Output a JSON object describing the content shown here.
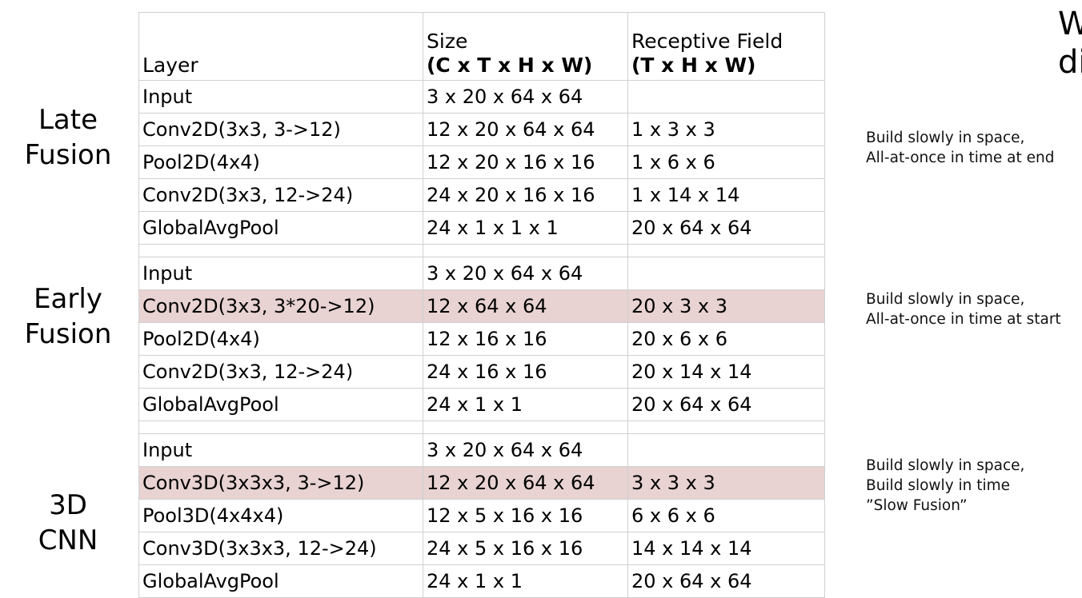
{
  "headers": {
    "layer": "Layer",
    "size_top": "Size",
    "size_bottom": "(C x T x H x W)",
    "rf_top": "Receptive Field",
    "rf_bottom": "(T x H x W)"
  },
  "groups": [
    {
      "label_lines": [
        "Late",
        "Fusion"
      ],
      "note_lines": [
        "Build slowly in space,",
        "All-at-once in time at end"
      ],
      "rows": [
        {
          "layer": "Input",
          "size": "3 x 20 x 64 x 64",
          "rf": "",
          "highlight": false
        },
        {
          "layer": "Conv2D(3x3, 3->12)",
          "size": "12 x 20 x 64 x 64",
          "rf": "1 x 3 x 3",
          "highlight": false
        },
        {
          "layer": "Pool2D(4x4)",
          "size": "12 x 20 x 16 x 16",
          "rf": "1 x 6 x 6",
          "highlight": false
        },
        {
          "layer": "Conv2D(3x3, 12->24)",
          "size": "24 x 20 x 16 x 16",
          "rf": "1 x 14 x 14",
          "highlight": false
        },
        {
          "layer": "GlobalAvgPool",
          "size": "24 x 1 x 1 x 1",
          "rf": "20 x 64 x 64",
          "highlight": false
        }
      ]
    },
    {
      "label_lines": [
        "Early",
        "Fusion"
      ],
      "note_lines": [
        "Build slowly in space,",
        "All-at-once in time at start"
      ],
      "rows": [
        {
          "layer": "Input",
          "size": "3 x 20 x 64 x 64",
          "rf": "",
          "highlight": false
        },
        {
          "layer": "Conv2D(3x3, 3*20->12)",
          "size": "12 x 64 x 64",
          "rf": "20 x 3 x 3",
          "highlight": true
        },
        {
          "layer": "Pool2D(4x4)",
          "size": "12 x 16 x 16",
          "rf": "20 x 6 x 6",
          "highlight": false
        },
        {
          "layer": "Conv2D(3x3, 12->24)",
          "size": "24 x 16 x 16",
          "rf": "20 x 14 x 14",
          "highlight": false
        },
        {
          "layer": "GlobalAvgPool",
          "size": "24 x 1 x 1",
          "rf": "20 x 64 x 64",
          "highlight": false
        }
      ]
    },
    {
      "label_lines": [
        "3D",
        "CNN"
      ],
      "note_lines": [
        "Build slowly in space,",
        "Build slowly in time",
        "”Slow Fusion”"
      ],
      "rows": [
        {
          "layer": "Input",
          "size": "3 x 20 x 64 x 64",
          "rf": "",
          "highlight": false
        },
        {
          "layer": "Conv3D(3x3x3, 3->12)",
          "size": "12 x 20 x 64 x 64",
          "rf": "3 x 3 x 3",
          "highlight": true
        },
        {
          "layer": "Pool3D(4x4x4)",
          "size": "12 x 5 x 16 x 16",
          "rf": "6 x 6 x 6",
          "highlight": false
        },
        {
          "layer": "Conv3D(3x3x3, 12->24)",
          "size": "24 x 5 x 16 x 16",
          "rf": "14 x 14 x 14",
          "highlight": false
        },
        {
          "layer": "GlobalAvgPool",
          "size": "24 x 1 x 1",
          "rf": "20 x 64 x 64",
          "highlight": false
        }
      ]
    }
  ],
  "corner_title_lines": [
    "W",
    "di"
  ],
  "colors": {
    "highlight_row": "#e8d2d2",
    "grid": "#d0d0d0"
  }
}
